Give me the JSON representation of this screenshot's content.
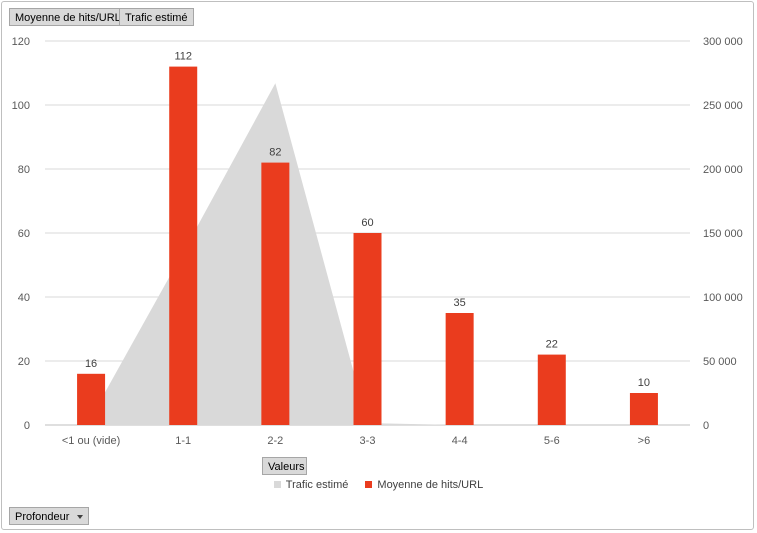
{
  "pivot_buttons": {
    "value_field_1": "Moyenne de hits/URL",
    "value_field_2": "Trafic estimé",
    "values_button": "Valeurs",
    "axis_field": "Profondeur"
  },
  "colors": {
    "bar": "#ea3c1e",
    "area": "#d9d9d9",
    "grid": "#d9d9d9",
    "axis_text": "#595959"
  },
  "chart_data": {
    "type": "bar",
    "categories": [
      "<1 ou (vide)",
      "1-1",
      "2-2",
      "3-3",
      "4-4",
      "5-6",
      ">6"
    ],
    "series": [
      {
        "name": "Moyenne de hits/URL",
        "type": "bar",
        "axis": "left",
        "values": [
          16,
          112,
          82,
          60,
          35,
          22,
          10
        ],
        "data_labels": [
          "16",
          "112",
          "82",
          "60",
          "35",
          "22",
          "10"
        ]
      },
      {
        "name": "Trafic estimé",
        "type": "area",
        "axis": "right",
        "values": [
          6000,
          135000,
          267000,
          1500,
          0,
          0,
          0
        ]
      }
    ],
    "y_left": {
      "ylim": [
        0,
        120
      ],
      "ticks": [
        0,
        20,
        40,
        60,
        80,
        100,
        120
      ],
      "tick_labels": [
        "0",
        "20",
        "40",
        "60",
        "80",
        "100",
        "120"
      ]
    },
    "y_right": {
      "ylim": [
        0,
        300000
      ],
      "ticks": [
        0,
        50000,
        100000,
        150000,
        200000,
        250000,
        300000
      ],
      "tick_labels": [
        "0",
        "50 000",
        "100 000",
        "150 000",
        "200 000",
        "250 000",
        "300 000"
      ]
    },
    "grid": true,
    "legend": {
      "position": "bottom",
      "entries": [
        "Trafic estimé",
        "Moyenne de hits/URL"
      ]
    }
  }
}
